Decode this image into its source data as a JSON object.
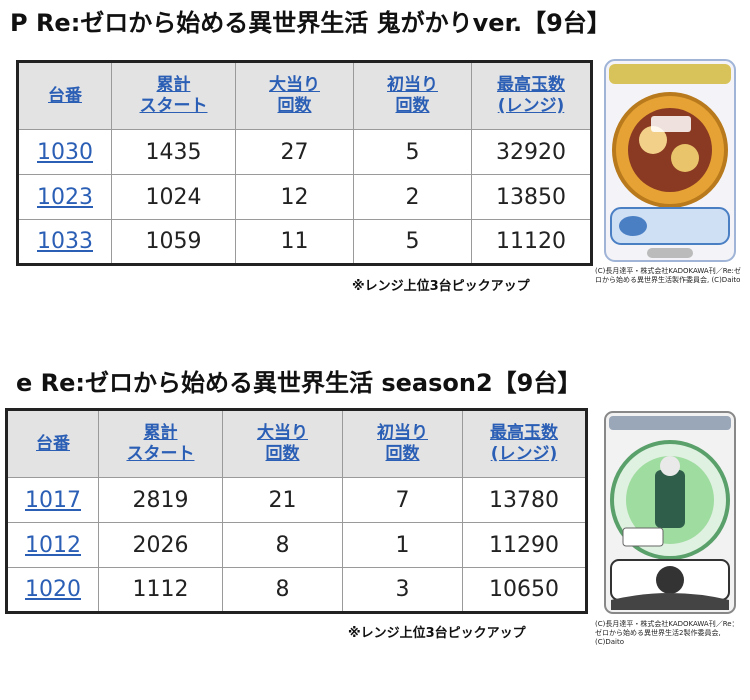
{
  "sections": [
    {
      "title": "P Re:ゼロから始める異世界生活 鬼がかりver.【9台】",
      "headers": [
        [
          "台番"
        ],
        [
          "累計",
          "スタート"
        ],
        [
          "大当り",
          "回数"
        ],
        [
          "初当り",
          "回数"
        ],
        [
          "最高玉数",
          "(レンジ)"
        ]
      ],
      "rows": [
        {
          "id": "1030",
          "start": "1435",
          "big": "27",
          "first": "5",
          "max": "32920"
        },
        {
          "id": "1023",
          "start": "1024",
          "big": "12",
          "first": "2",
          "max": "13850"
        },
        {
          "id": "1033",
          "start": "1059",
          "big": "11",
          "first": "5",
          "max": "11120"
        }
      ],
      "note": "※レンジ上位3台ピックアップ",
      "credit": "(C)長月達平・株式会社KADOKAWA刊／Re:ゼロから始める異世界生活製作委員会, (C)Daito"
    },
    {
      "title": "e Re:ゼロから始める異世界生活 season2【9台】",
      "headers": [
        [
          "台番"
        ],
        [
          "累計",
          "スタート"
        ],
        [
          "大当り",
          "回数"
        ],
        [
          "初当り",
          "回数"
        ],
        [
          "最高玉数",
          "(レンジ)"
        ]
      ],
      "rows": [
        {
          "id": "1017",
          "start": "2819",
          "big": "21",
          "first": "7",
          "max": "13780"
        },
        {
          "id": "1012",
          "start": "2026",
          "big": "8",
          "first": "1",
          "max": "11290"
        },
        {
          "id": "1020",
          "start": "1112",
          "big": "8",
          "first": "3",
          "max": "10650"
        }
      ],
      "note": "※レンジ上位3台ピックアップ",
      "credit": "(C)長月達平・株式会社KADOKAWA刊／Re：ゼロから始める異世界生活2製作委員会, (C)Daito"
    }
  ]
}
